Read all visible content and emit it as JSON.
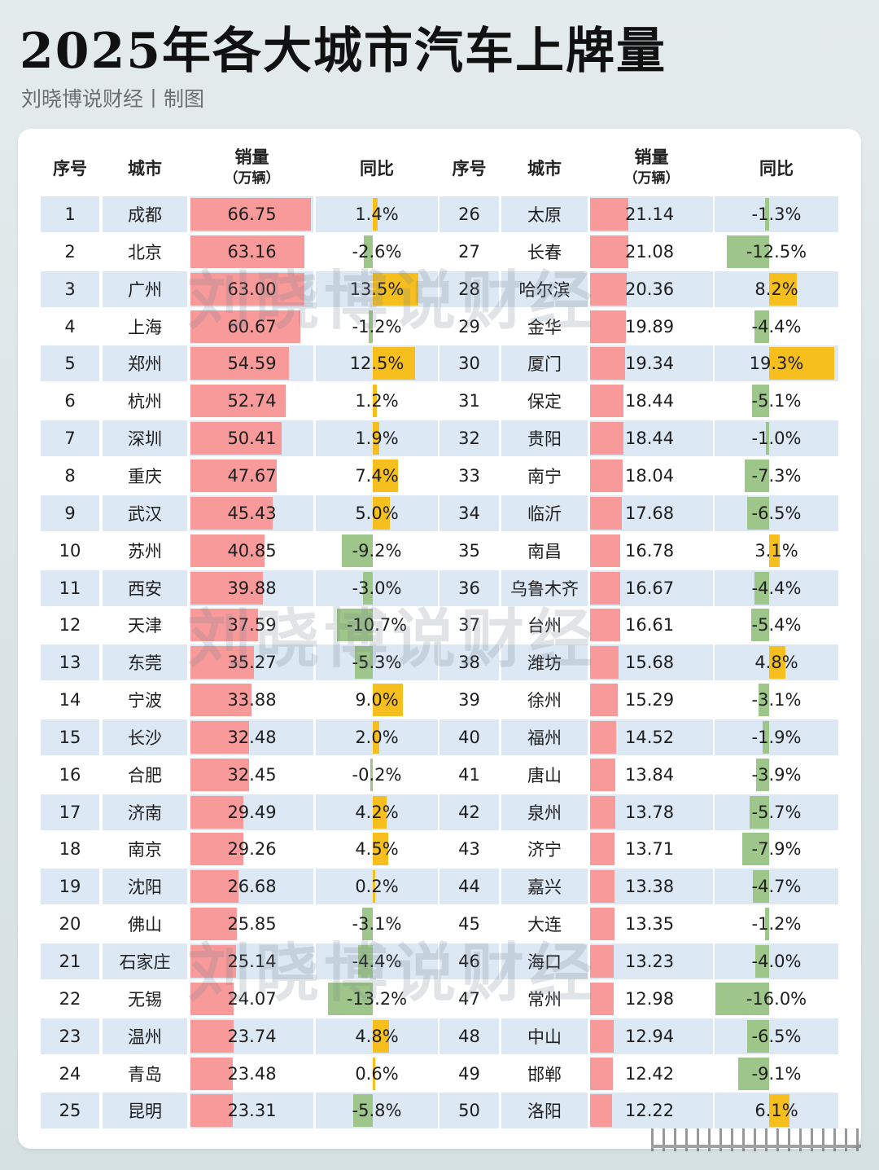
{
  "header": {
    "title": "2025年各大城市汽车上牌量",
    "subtitle": "刘晓博说财经丨制图"
  },
  "table": {
    "columns": {
      "rank": "序号",
      "city": "城市",
      "sales": "销量",
      "sales_unit": "（万辆）",
      "yoy": "同比"
    }
  },
  "watermark": "刘晓博说财经",
  "colors": {
    "sales_bar": "#f8999a",
    "yoy_positive": "#f7bf1e",
    "yoy_negative": "#9fc68a",
    "row_band": "#dce8f4"
  },
  "chart_data": {
    "type": "table",
    "title": "2025年各大城市汽车上牌量",
    "subtitle": "刘晓博说财经丨制图",
    "columns": [
      "序号",
      "城市",
      "销量（万辆）",
      "同比"
    ],
    "rows": [
      {
        "rank": 1,
        "city": "成都",
        "sales": "66.75",
        "yoy": "1.4%",
        "yoy_value": 1.4
      },
      {
        "rank": 2,
        "city": "北京",
        "sales": "63.16",
        "yoy": "-2.6%",
        "yoy_value": -2.6
      },
      {
        "rank": 3,
        "city": "广州",
        "sales": "63.00",
        "yoy": "13.5%",
        "yoy_value": 13.5
      },
      {
        "rank": 4,
        "city": "上海",
        "sales": "60.67",
        "yoy": "-1.2%",
        "yoy_value": -1.2
      },
      {
        "rank": 5,
        "city": "郑州",
        "sales": "54.59",
        "yoy": "12.5%",
        "yoy_value": 12.5
      },
      {
        "rank": 6,
        "city": "杭州",
        "sales": "52.74",
        "yoy": "1.2%",
        "yoy_value": 1.2
      },
      {
        "rank": 7,
        "city": "深圳",
        "sales": "50.41",
        "yoy": "1.9%",
        "yoy_value": 1.9
      },
      {
        "rank": 8,
        "city": "重庆",
        "sales": "47.67",
        "yoy": "7.4%",
        "yoy_value": 7.4
      },
      {
        "rank": 9,
        "city": "武汉",
        "sales": "45.43",
        "yoy": "5.0%",
        "yoy_value": 5.0
      },
      {
        "rank": 10,
        "city": "苏州",
        "sales": "40.85",
        "yoy": "-9.2%",
        "yoy_value": -9.2
      },
      {
        "rank": 11,
        "city": "西安",
        "sales": "39.88",
        "yoy": "-3.0%",
        "yoy_value": -3.0
      },
      {
        "rank": 12,
        "city": "天津",
        "sales": "37.59",
        "yoy": "-10.7%",
        "yoy_value": -10.7
      },
      {
        "rank": 13,
        "city": "东莞",
        "sales": "35.27",
        "yoy": "-5.3%",
        "yoy_value": -5.3
      },
      {
        "rank": 14,
        "city": "宁波",
        "sales": "33.88",
        "yoy": "9.0%",
        "yoy_value": 9.0
      },
      {
        "rank": 15,
        "city": "长沙",
        "sales": "32.48",
        "yoy": "2.0%",
        "yoy_value": 2.0
      },
      {
        "rank": 16,
        "city": "合肥",
        "sales": "32.45",
        "yoy": "-0.2%",
        "yoy_value": -0.2
      },
      {
        "rank": 17,
        "city": "济南",
        "sales": "29.49",
        "yoy": "4.2%",
        "yoy_value": 4.2
      },
      {
        "rank": 18,
        "city": "南京",
        "sales": "29.26",
        "yoy": "4.5%",
        "yoy_value": 4.5
      },
      {
        "rank": 19,
        "city": "沈阳",
        "sales": "26.68",
        "yoy": "0.2%",
        "yoy_value": 0.2
      },
      {
        "rank": 20,
        "city": "佛山",
        "sales": "25.85",
        "yoy": "-3.1%",
        "yoy_value": -3.1
      },
      {
        "rank": 21,
        "city": "石家庄",
        "sales": "25.14",
        "yoy": "-4.4%",
        "yoy_value": -4.4
      },
      {
        "rank": 22,
        "city": "无锡",
        "sales": "24.07",
        "yoy": "-13.2%",
        "yoy_value": -13.2
      },
      {
        "rank": 23,
        "city": "温州",
        "sales": "23.74",
        "yoy": "4.8%",
        "yoy_value": 4.8
      },
      {
        "rank": 24,
        "city": "青岛",
        "sales": "23.48",
        "yoy": "0.6%",
        "yoy_value": 0.6
      },
      {
        "rank": 25,
        "city": "昆明",
        "sales": "23.31",
        "yoy": "-5.8%",
        "yoy_value": -5.8
      },
      {
        "rank": 26,
        "city": "太原",
        "sales": "21.14",
        "yoy": "-1.3%",
        "yoy_value": -1.3
      },
      {
        "rank": 27,
        "city": "长春",
        "sales": "21.08",
        "yoy": "-12.5%",
        "yoy_value": -12.5
      },
      {
        "rank": 28,
        "city": "哈尔滨",
        "sales": "20.36",
        "yoy": "8.2%",
        "yoy_value": 8.2
      },
      {
        "rank": 29,
        "city": "金华",
        "sales": "19.89",
        "yoy": "-4.4%",
        "yoy_value": -4.4
      },
      {
        "rank": 30,
        "city": "厦门",
        "sales": "19.34",
        "yoy": "19.3%",
        "yoy_value": 19.3
      },
      {
        "rank": 31,
        "city": "保定",
        "sales": "18.44",
        "yoy": "-5.1%",
        "yoy_value": -5.1
      },
      {
        "rank": 32,
        "city": "贵阳",
        "sales": "18.44",
        "yoy": "-1.0%",
        "yoy_value": -1.0
      },
      {
        "rank": 33,
        "city": "南宁",
        "sales": "18.04",
        "yoy": "-7.3%",
        "yoy_value": -7.3
      },
      {
        "rank": 34,
        "city": "临沂",
        "sales": "17.68",
        "yoy": "-6.5%",
        "yoy_value": -6.5
      },
      {
        "rank": 35,
        "city": "南昌",
        "sales": "16.78",
        "yoy": "3.1%",
        "yoy_value": 3.1
      },
      {
        "rank": 36,
        "city": "乌鲁木齐",
        "sales": "16.67",
        "yoy": "-4.4%",
        "yoy_value": -4.4
      },
      {
        "rank": 37,
        "city": "台州",
        "sales": "16.61",
        "yoy": "-5.4%",
        "yoy_value": -5.4
      },
      {
        "rank": 38,
        "city": "潍坊",
        "sales": "15.68",
        "yoy": "4.8%",
        "yoy_value": 4.8
      },
      {
        "rank": 39,
        "city": "徐州",
        "sales": "15.29",
        "yoy": "-3.1%",
        "yoy_value": -3.1
      },
      {
        "rank": 40,
        "city": "福州",
        "sales": "14.52",
        "yoy": "-1.9%",
        "yoy_value": -1.9
      },
      {
        "rank": 41,
        "city": "唐山",
        "sales": "13.84",
        "yoy": "-3.9%",
        "yoy_value": -3.9
      },
      {
        "rank": 42,
        "city": "泉州",
        "sales": "13.78",
        "yoy": "-5.7%",
        "yoy_value": -5.7
      },
      {
        "rank": 43,
        "city": "济宁",
        "sales": "13.71",
        "yoy": "-7.9%",
        "yoy_value": -7.9
      },
      {
        "rank": 44,
        "city": "嘉兴",
        "sales": "13.38",
        "yoy": "-4.7%",
        "yoy_value": -4.7
      },
      {
        "rank": 45,
        "city": "大连",
        "sales": "13.35",
        "yoy": "-1.2%",
        "yoy_value": -1.2
      },
      {
        "rank": 46,
        "city": "海口",
        "sales": "13.23",
        "yoy": "-4.0%",
        "yoy_value": -4.0
      },
      {
        "rank": 47,
        "city": "常州",
        "sales": "12.98",
        "yoy": "-16.0%",
        "yoy_value": -16.0
      },
      {
        "rank": 48,
        "city": "中山",
        "sales": "12.94",
        "yoy": "-6.5%",
        "yoy_value": -6.5
      },
      {
        "rank": 49,
        "city": "邯郸",
        "sales": "12.42",
        "yoy": "-9.1%",
        "yoy_value": -9.1
      },
      {
        "rank": 50,
        "city": "洛阳",
        "sales": "12.22",
        "yoy": "6.1%",
        "yoy_value": 6.1
      }
    ],
    "sales_unit": "万辆",
    "encoding": {
      "sales": "red data bar proportional to sales",
      "yoy": "diverging bar: yellow for positive, green for negative"
    }
  }
}
